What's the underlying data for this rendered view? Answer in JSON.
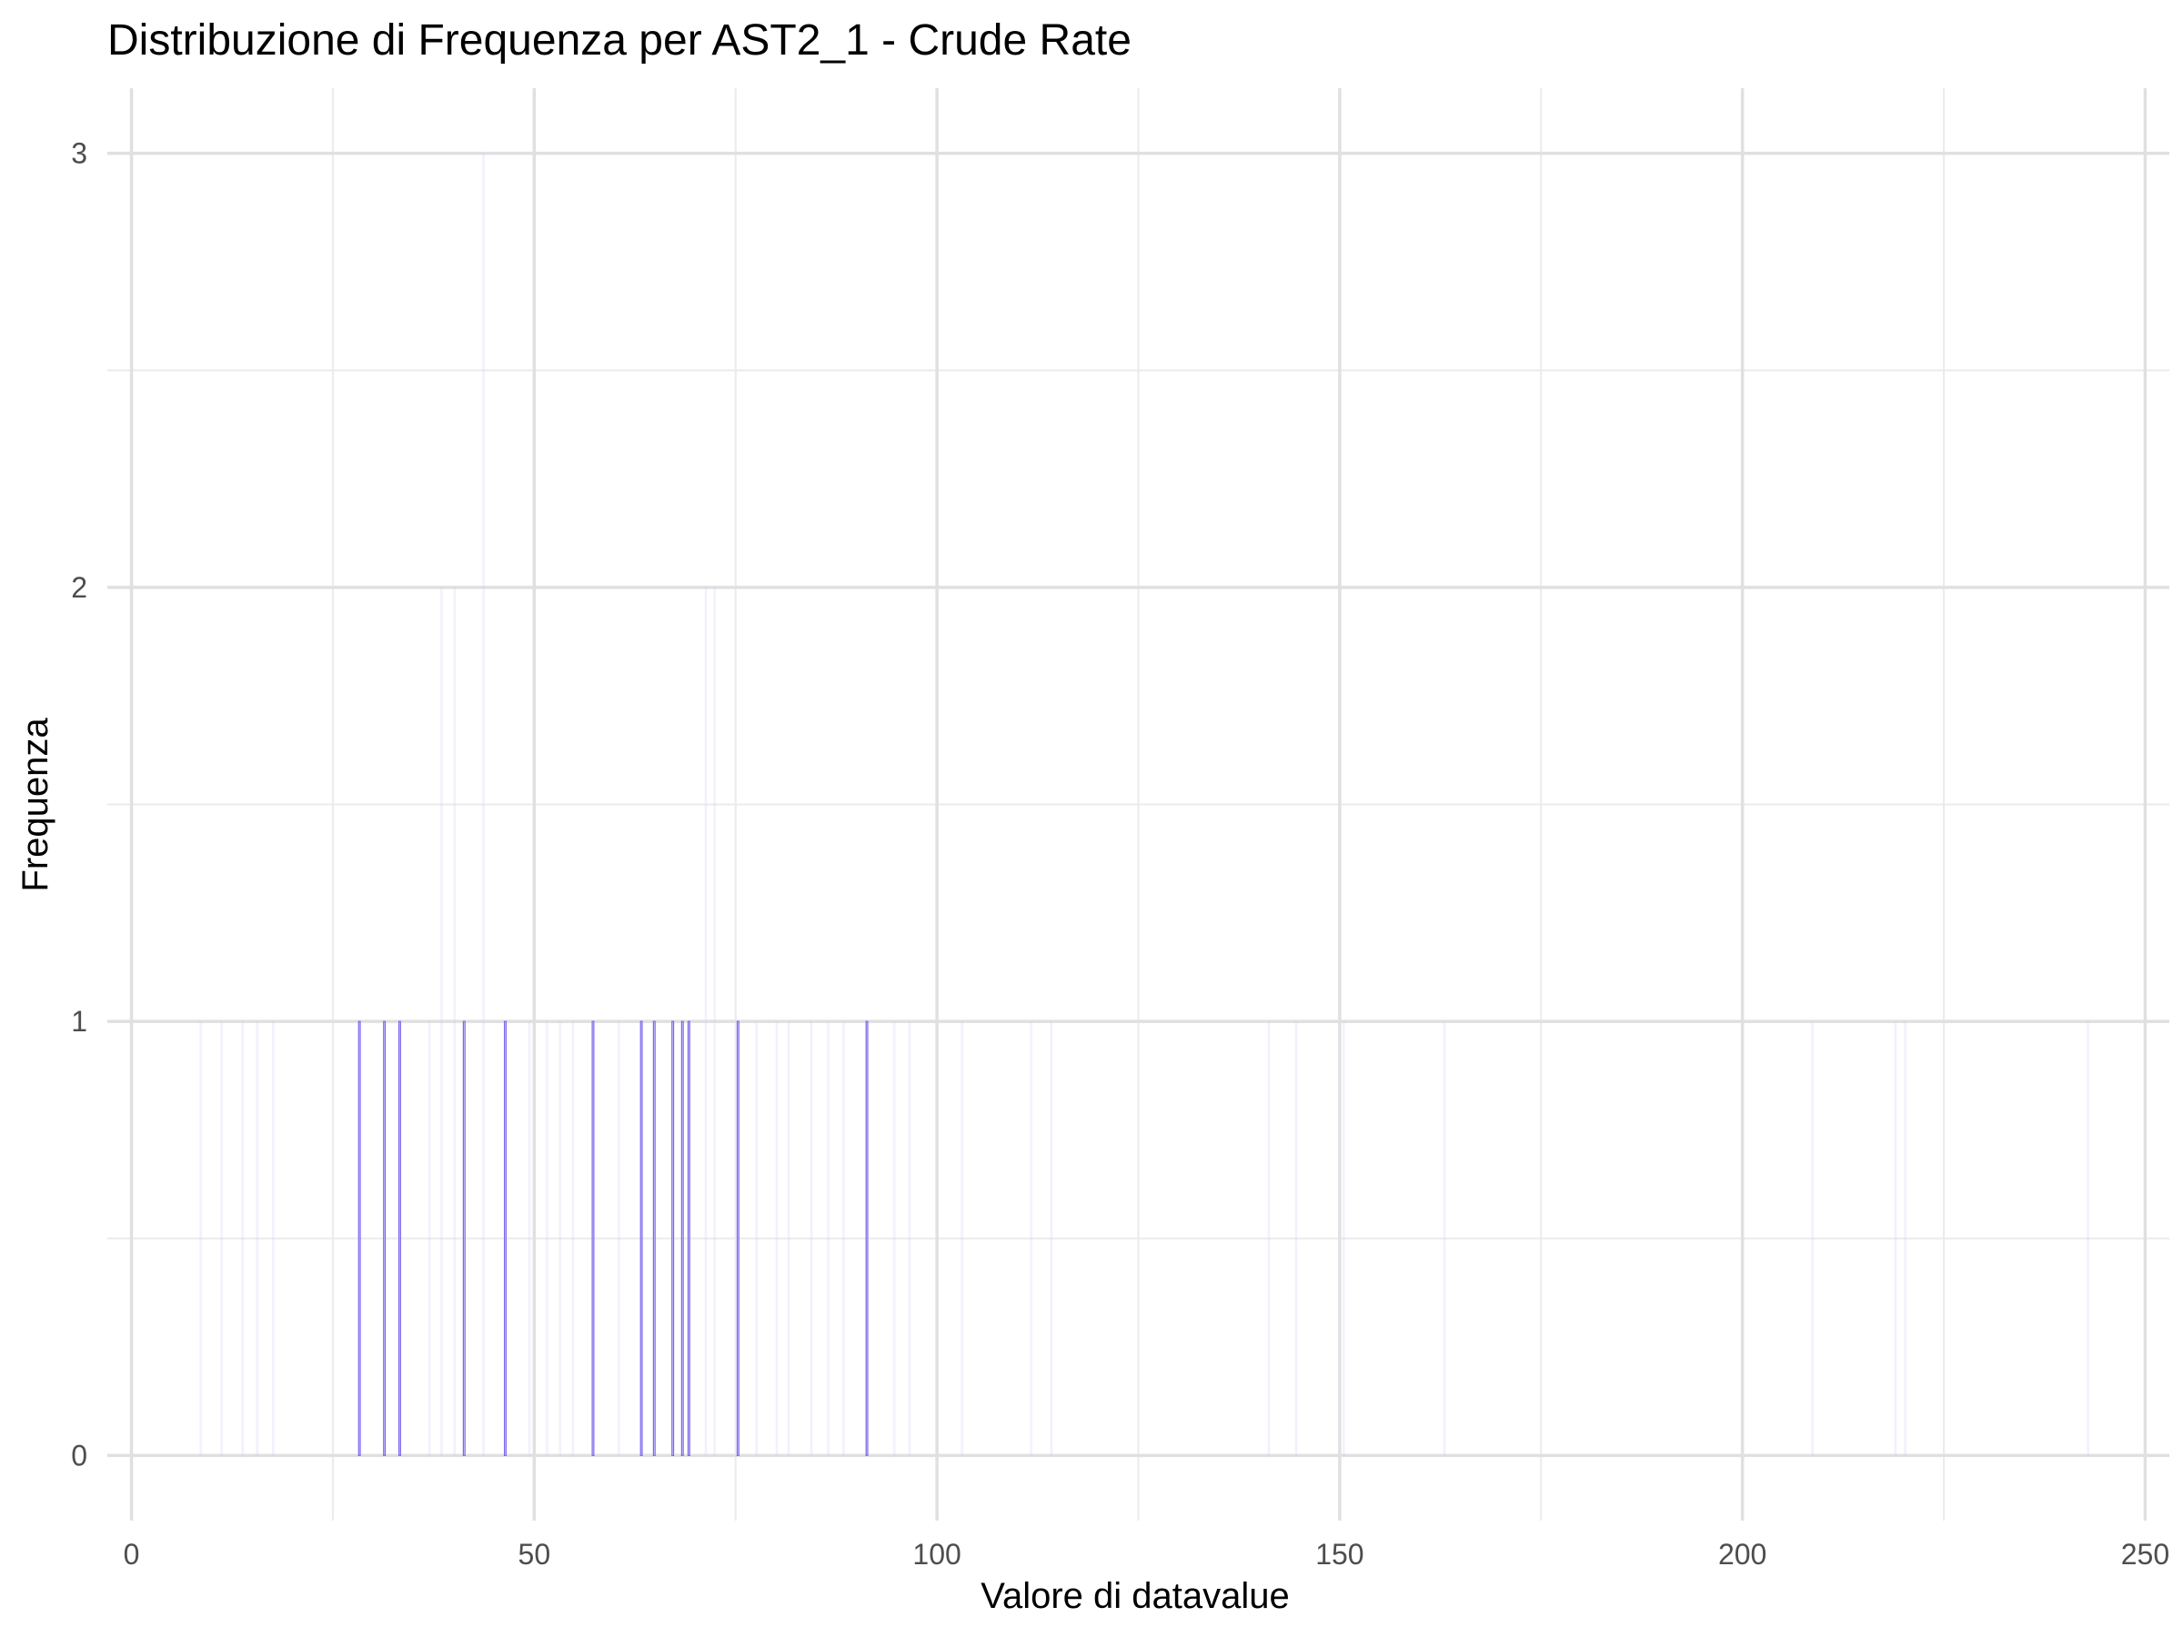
{
  "chart_data": {
    "type": "bar",
    "subtype": "histogram",
    "title": "Distribuzione di Frequenza per AST2_1 - Crude Rate",
    "xlabel": "Valore di datavalue",
    "ylabel": "Frequenza",
    "xlim": [
      -3,
      253
    ],
    "ylim": [
      -0.15,
      3.15
    ],
    "x_ticks": [
      0,
      50,
      100,
      150,
      200,
      250
    ],
    "x_tick_labels": [
      "0",
      "50",
      "100",
      "150",
      "200",
      "250"
    ],
    "y_ticks": [
      0,
      1,
      2,
      3
    ],
    "y_tick_labels": [
      "0",
      "1",
      "2",
      "3"
    ],
    "grid": true,
    "bar_fill": "#e6e6fa",
    "bar_stroke": "#7b68ee",
    "bars": [
      {
        "x": 28.3,
        "count": 1
      },
      {
        "x": 31.4,
        "count": 1
      },
      {
        "x": 33.3,
        "count": 1
      },
      {
        "x": 41.3,
        "count": 1
      },
      {
        "x": 46.4,
        "count": 1
      },
      {
        "x": 57.3,
        "count": 1
      },
      {
        "x": 63.3,
        "count": 1
      },
      {
        "x": 64.9,
        "count": 1
      },
      {
        "x": 67.2,
        "count": 1
      },
      {
        "x": 68.4,
        "count": 1
      },
      {
        "x": 69.2,
        "count": 1
      },
      {
        "x": 75.3,
        "count": 1
      },
      {
        "x": 91.3,
        "count": 1
      }
    ],
    "faint_bars": [
      {
        "x": 8.6,
        "count": 1
      },
      {
        "x": 11.2,
        "count": 1
      },
      {
        "x": 13.8,
        "count": 1
      },
      {
        "x": 15.6,
        "count": 1
      },
      {
        "x": 17.6,
        "count": 1
      },
      {
        "x": 37.0,
        "count": 1
      },
      {
        "x": 38.5,
        "count": 2
      },
      {
        "x": 40.1,
        "count": 2
      },
      {
        "x": 43.7,
        "count": 3
      },
      {
        "x": 49.4,
        "count": 1
      },
      {
        "x": 51.6,
        "count": 1
      },
      {
        "x": 53.2,
        "count": 1
      },
      {
        "x": 54.8,
        "count": 1
      },
      {
        "x": 60.5,
        "count": 1
      },
      {
        "x": 71.3,
        "count": 2
      },
      {
        "x": 72.4,
        "count": 2
      },
      {
        "x": 77.6,
        "count": 1
      },
      {
        "x": 80.1,
        "count": 1
      },
      {
        "x": 81.6,
        "count": 1
      },
      {
        "x": 84.4,
        "count": 1
      },
      {
        "x": 86.5,
        "count": 1
      },
      {
        "x": 88.4,
        "count": 1
      },
      {
        "x": 94.7,
        "count": 1
      },
      {
        "x": 96.6,
        "count": 1
      },
      {
        "x": 103.1,
        "count": 1
      },
      {
        "x": 111.7,
        "count": 1
      },
      {
        "x": 114.2,
        "count": 1
      },
      {
        "x": 141.2,
        "count": 1
      },
      {
        "x": 144.6,
        "count": 1
      },
      {
        "x": 150.5,
        "count": 1
      },
      {
        "x": 163.0,
        "count": 1
      },
      {
        "x": 208.7,
        "count": 1
      },
      {
        "x": 219.0,
        "count": 1
      },
      {
        "x": 220.2,
        "count": 1
      },
      {
        "x": 242.9,
        "count": 1
      }
    ]
  }
}
